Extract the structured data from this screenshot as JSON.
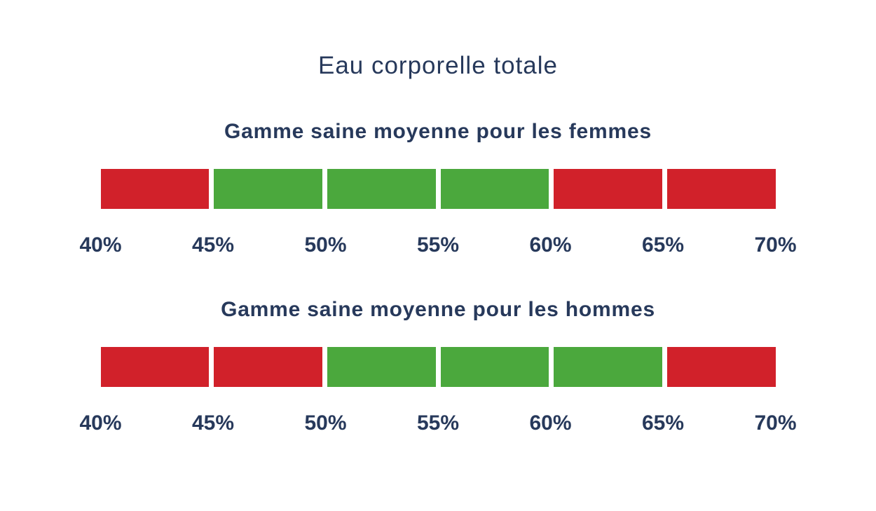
{
  "title": "Eau corporelle totale",
  "colors": {
    "red": "#D1212A",
    "green": "#4BA83D",
    "navy": "#27395B",
    "background": "#FFFFFF"
  },
  "scales": [
    {
      "heading": "Gamme saine moyenne pour les femmes",
      "segments": [
        {
          "from": "40%",
          "to": "45%",
          "status": "red"
        },
        {
          "from": "45%",
          "to": "50%",
          "status": "green"
        },
        {
          "from": "50%",
          "to": "55%",
          "status": "green"
        },
        {
          "from": "55%",
          "to": "60%",
          "status": "green"
        },
        {
          "from": "60%",
          "to": "65%",
          "status": "red"
        },
        {
          "from": "65%",
          "to": "70%",
          "status": "red"
        }
      ],
      "ticks": [
        "40%",
        "45%",
        "50%",
        "55%",
        "60%",
        "65%",
        "70%"
      ]
    },
    {
      "heading": "Gamme saine moyenne pour les hommes",
      "segments": [
        {
          "from": "40%",
          "to": "45%",
          "status": "red"
        },
        {
          "from": "45%",
          "to": "50%",
          "status": "red"
        },
        {
          "from": "50%",
          "to": "55%",
          "status": "green"
        },
        {
          "from": "55%",
          "to": "60%",
          "status": "green"
        },
        {
          "from": "60%",
          "to": "65%",
          "status": "green"
        },
        {
          "from": "65%",
          "to": "70%",
          "status": "red"
        }
      ],
      "ticks": [
        "40%",
        "45%",
        "50%",
        "55%",
        "60%",
        "65%",
        "70%"
      ]
    }
  ],
  "chart_data": [
    {
      "type": "heatmap",
      "title": "Gamme saine moyenne pour les femmes",
      "suptitle": "Eau corporelle totale",
      "axis_range": [
        40,
        70
      ],
      "tick_step": 5,
      "tick_labels": [
        "40%",
        "45%",
        "50%",
        "55%",
        "60%",
        "65%",
        "70%"
      ],
      "segments": [
        {
          "range_pct": [
            40,
            45
          ],
          "category": "hors plage saine",
          "color": "#D1212A"
        },
        {
          "range_pct": [
            45,
            60
          ],
          "category": "plage saine",
          "color": "#4BA83D"
        },
        {
          "range_pct": [
            60,
            70
          ],
          "category": "hors plage saine",
          "color": "#D1212A"
        }
      ],
      "healthy_range_pct": [
        45,
        60
      ],
      "legend": "none",
      "grid": false
    },
    {
      "type": "heatmap",
      "title": "Gamme saine moyenne pour les hommes",
      "suptitle": "Eau corporelle totale",
      "axis_range": [
        40,
        70
      ],
      "tick_step": 5,
      "tick_labels": [
        "40%",
        "45%",
        "50%",
        "55%",
        "60%",
        "65%",
        "70%"
      ],
      "segments": [
        {
          "range_pct": [
            40,
            50
          ],
          "category": "hors plage saine",
          "color": "#D1212A"
        },
        {
          "range_pct": [
            50,
            65
          ],
          "category": "plage saine",
          "color": "#4BA83D"
        },
        {
          "range_pct": [
            65,
            70
          ],
          "category": "hors plage saine",
          "color": "#D1212A"
        }
      ],
      "healthy_range_pct": [
        50,
        65
      ],
      "legend": "none",
      "grid": false
    }
  ]
}
